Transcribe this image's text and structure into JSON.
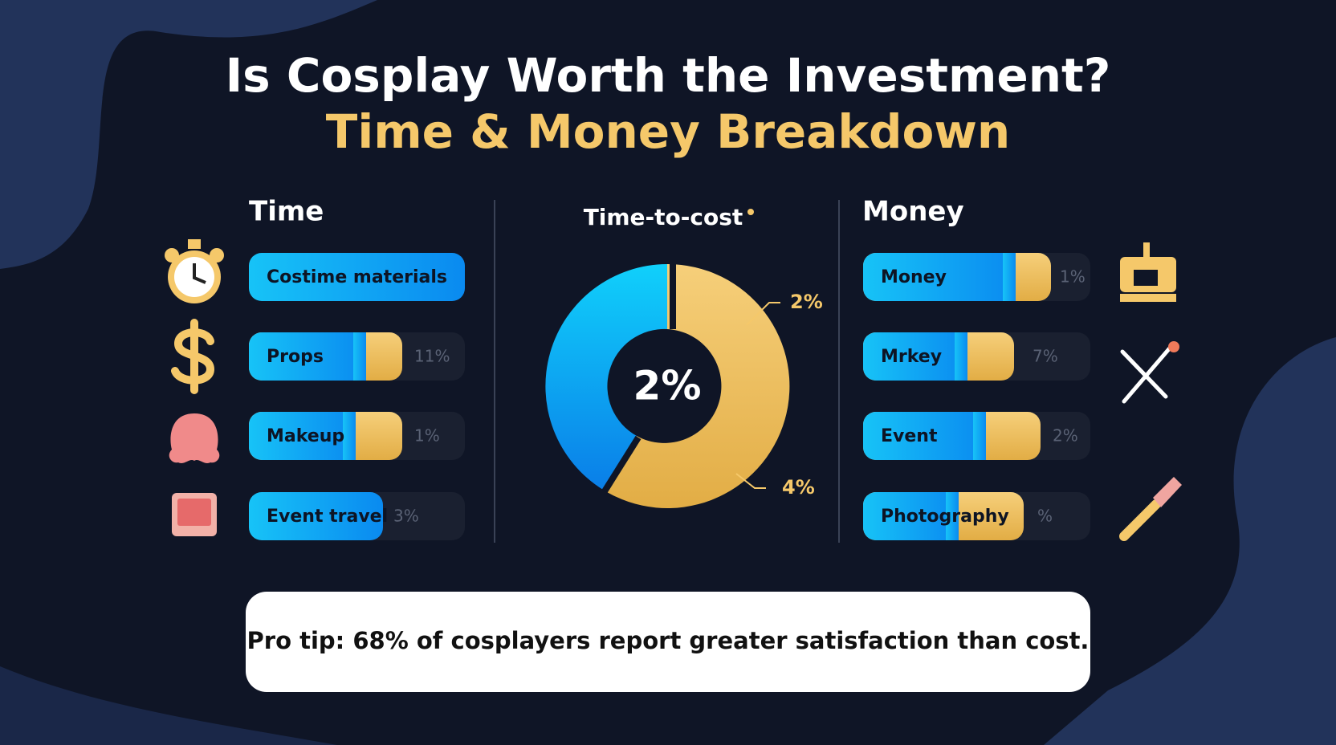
{
  "title": "Is Cosplay Worth the Investment?",
  "subtitle": "Time & Money Breakdown",
  "time": {
    "heading": "Time",
    "rows": [
      {
        "label": "Costime materials"
      },
      {
        "label": "Props",
        "pct": "11%"
      },
      {
        "label": "Makeup",
        "pct": "1%"
      },
      {
        "label": "Event travel",
        "pct": "3%"
      }
    ]
  },
  "donut": {
    "heading": "Time-to-cost",
    "center": "2%",
    "labels": [
      "2%",
      "4%"
    ]
  },
  "money": {
    "heading": "Money",
    "rows": [
      {
        "label": "Money",
        "pct": "1%"
      },
      {
        "label": "Mrkey",
        "pct": "7%"
      },
      {
        "label": "Event",
        "pct": "2%"
      },
      {
        "label": "Photography",
        "pct": "%"
      }
    ]
  },
  "tip": "Pro tip: 68% of cosplayers report greater satisfaction than cost."
}
